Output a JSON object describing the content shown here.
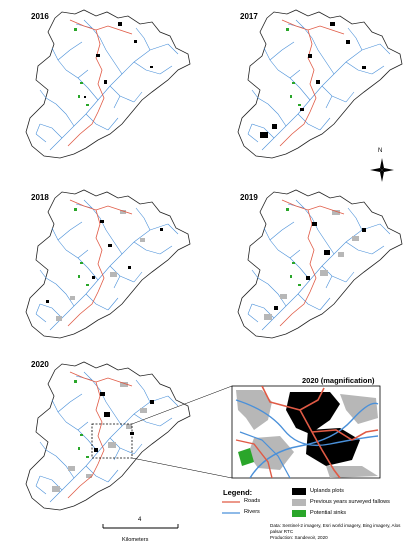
{
  "panels": [
    {
      "year": "2016"
    },
    {
      "year": "2017"
    },
    {
      "year": "2018"
    },
    {
      "year": "2019"
    },
    {
      "year": "2020"
    }
  ],
  "magnification_title": "2020 (magnification)",
  "north_label": "N",
  "legend": {
    "title": "Legend:",
    "items": [
      {
        "label": "Roads",
        "symbol": "line",
        "color": "#e05a45"
      },
      {
        "label": "Rivers",
        "symbol": "line",
        "color": "#4a90d9"
      },
      {
        "label": "Uplands plots",
        "symbol": "box",
        "color": "#000000"
      },
      {
        "label": "Previous years surveyed fallows",
        "symbol": "box",
        "color": "#b7b7b7"
      },
      {
        "label": "Potential sinks",
        "symbol": "box",
        "color": "#2aa62a"
      }
    ]
  },
  "scale_bar": {
    "value": "4",
    "unit": "Kilometers"
  },
  "credits": [
    "Data: Sentinel-2 imagery, Esri world imagery, Bing imagery, Alos palsar RTC",
    "Production: Sandevoir, 2020"
  ]
}
